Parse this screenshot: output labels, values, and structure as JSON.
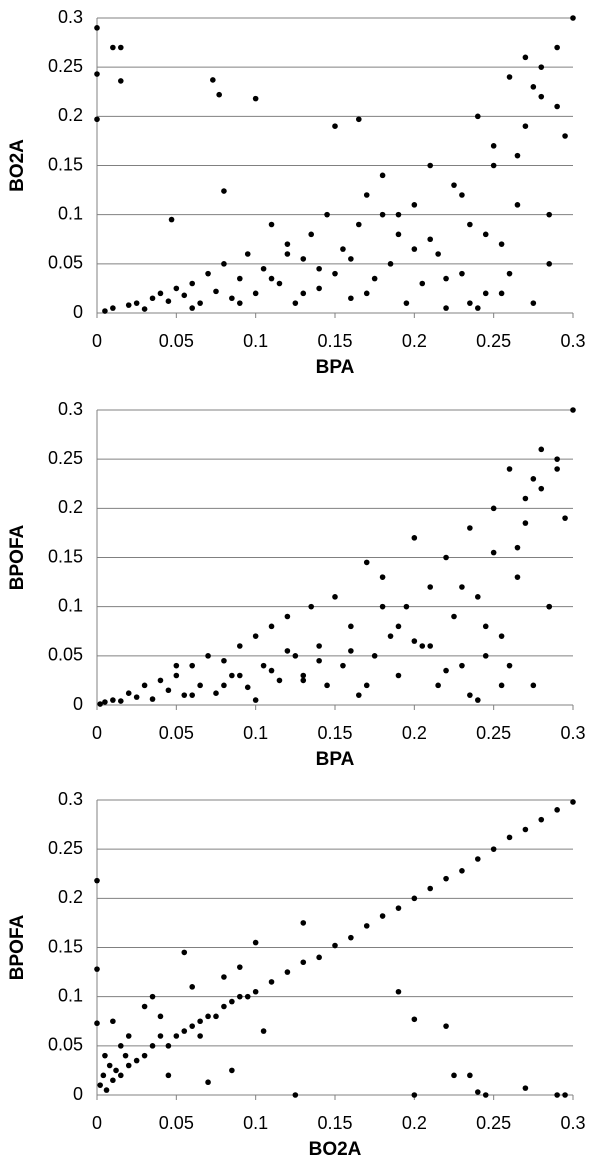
{
  "chart_data": [
    {
      "type": "scatter",
      "x_label": "BPA",
      "y_label": "BO2A",
      "color": "#000000",
      "xlim": [
        0,
        0.3
      ],
      "ylim": [
        0,
        0.3
      ],
      "xticks": [
        0,
        0.05,
        0.1,
        0.15,
        0.2,
        0.25,
        0.3
      ],
      "yticks": [
        0,
        0.05,
        0.1,
        0.15,
        0.2,
        0.25,
        0.3
      ],
      "grid": true,
      "x": [
        0,
        0,
        0,
        0.01,
        0.015,
        0.015,
        0.073,
        0.077,
        0.1,
        0.047,
        0.08,
        0.15,
        0.165,
        0.005,
        0.01,
        0.02,
        0.025,
        0.03,
        0.035,
        0.04,
        0.045,
        0.05,
        0.055,
        0.06,
        0.065,
        0.07,
        0.075,
        0.08,
        0.085,
        0.09,
        0.095,
        0.1,
        0.105,
        0.11,
        0.115,
        0.12,
        0.125,
        0.13,
        0.135,
        0.14,
        0.145,
        0.15,
        0.155,
        0.16,
        0.165,
        0.17,
        0.175,
        0.18,
        0.185,
        0.19,
        0.195,
        0.2,
        0.205,
        0.21,
        0.215,
        0.22,
        0.225,
        0.23,
        0.235,
        0.24,
        0.245,
        0.25,
        0.255,
        0.26,
        0.265,
        0.27,
        0.275,
        0.28,
        0.285,
        0.29,
        0.295,
        0.3,
        0.06,
        0.09,
        0.12,
        0.14,
        0.17,
        0.19,
        0.21,
        0.23,
        0.25,
        0.26,
        0.27,
        0.28,
        0.29,
        0.24,
        0.22,
        0.2,
        0.18,
        0.16,
        0.13,
        0.11,
        0.255,
        0.265,
        0.275,
        0.285,
        0.245,
        0.235
      ],
      "values": [
        0.29,
        0.243,
        0.197,
        0.27,
        0.27,
        0.236,
        0.237,
        0.222,
        0.218,
        0.095,
        0.124,
        0.19,
        0.197,
        0.002,
        0.005,
        0.008,
        0.01,
        0.004,
        0.015,
        0.02,
        0.012,
        0.025,
        0.018,
        0.03,
        0.01,
        0.04,
        0.022,
        0.05,
        0.015,
        0.035,
        0.06,
        0.02,
        0.045,
        0.09,
        0.03,
        0.07,
        0.01,
        0.055,
        0.08,
        0.025,
        0.1,
        0.04,
        0.065,
        0.015,
        0.09,
        0.12,
        0.035,
        0.14,
        0.05,
        0.08,
        0.01,
        0.11,
        0.03,
        0.15,
        0.06,
        0.005,
        0.13,
        0.04,
        0.09,
        0.2,
        0.02,
        0.17,
        0.07,
        0.24,
        0.11,
        0.26,
        0.01,
        0.22,
        0.05,
        0.27,
        0.18,
        0.3,
        0.005,
        0.01,
        0.06,
        0.045,
        0.02,
        0.1,
        0.075,
        0.12,
        0.15,
        0.04,
        0.19,
        0.25,
        0.21,
        0.005,
        0.035,
        0.065,
        0.1,
        0.055,
        0.02,
        0.035,
        0.02,
        0.16,
        0.23,
        0.1,
        0.08,
        0.01
      ]
    },
    {
      "type": "scatter",
      "x_label": "BPA",
      "y_label": "BPOFA",
      "color": "#000000",
      "xlim": [
        0,
        0.3
      ],
      "ylim": [
        0,
        0.3
      ],
      "xticks": [
        0,
        0.05,
        0.1,
        0.15,
        0.2,
        0.25,
        0.3
      ],
      "yticks": [
        0,
        0.05,
        0.1,
        0.15,
        0.2,
        0.25,
        0.3
      ],
      "grid": true,
      "x": [
        0.002,
        0.005,
        0.01,
        0.015,
        0.02,
        0.025,
        0.03,
        0.035,
        0.04,
        0.045,
        0.05,
        0.055,
        0.06,
        0.065,
        0.07,
        0.075,
        0.08,
        0.085,
        0.09,
        0.095,
        0.1,
        0.105,
        0.11,
        0.115,
        0.12,
        0.125,
        0.13,
        0.135,
        0.14,
        0.145,
        0.15,
        0.155,
        0.16,
        0.165,
        0.17,
        0.175,
        0.18,
        0.185,
        0.19,
        0.195,
        0.2,
        0.205,
        0.21,
        0.215,
        0.22,
        0.225,
        0.23,
        0.235,
        0.24,
        0.245,
        0.25,
        0.255,
        0.26,
        0.265,
        0.27,
        0.275,
        0.28,
        0.285,
        0.29,
        0.295,
        0.3,
        0.06,
        0.09,
        0.12,
        0.14,
        0.17,
        0.19,
        0.21,
        0.23,
        0.25,
        0.26,
        0.27,
        0.28,
        0.29,
        0.24,
        0.22,
        0.2,
        0.18,
        0.16,
        0.13,
        0.11,
        0.255,
        0.265,
        0.275,
        0.285,
        0.245,
        0.235,
        0.08,
        0.1,
        0.05
      ],
      "values": [
        0.001,
        0.003,
        0.005,
        0.004,
        0.012,
        0.008,
        0.02,
        0.006,
        0.025,
        0.015,
        0.03,
        0.01,
        0.04,
        0.02,
        0.05,
        0.012,
        0.045,
        0.03,
        0.06,
        0.018,
        0.07,
        0.04,
        0.08,
        0.025,
        0.09,
        0.05,
        0.03,
        0.1,
        0.06,
        0.02,
        0.11,
        0.04,
        0.08,
        0.01,
        0.145,
        0.05,
        0.13,
        0.07,
        0.03,
        0.1,
        0.17,
        0.06,
        0.12,
        0.02,
        0.15,
        0.09,
        0.04,
        0.18,
        0.11,
        0.05,
        0.2,
        0.07,
        0.24,
        0.13,
        0.21,
        0.02,
        0.26,
        0.1,
        0.25,
        0.19,
        0.3,
        0.01,
        0.03,
        0.055,
        0.045,
        0.02,
        0.08,
        0.06,
        0.12,
        0.155,
        0.04,
        0.185,
        0.22,
        0.24,
        0.005,
        0.035,
        0.065,
        0.1,
        0.055,
        0.025,
        0.035,
        0.02,
        0.16,
        0.23,
        0.1,
        0.08,
        0.01,
        0.02,
        0.005,
        0.04
      ]
    },
    {
      "type": "scatter",
      "x_label": "BO2A",
      "y_label": "BPOFA",
      "color": "#000000",
      "xlim": [
        0,
        0.3
      ],
      "ylim": [
        0,
        0.3
      ],
      "xticks": [
        0,
        0.05,
        0.1,
        0.15,
        0.2,
        0.25,
        0.3
      ],
      "yticks": [
        0,
        0.05,
        0.1,
        0.15,
        0.2,
        0.25,
        0.3
      ],
      "grid": true,
      "x": [
        0,
        0,
        0,
        0.002,
        0.004,
        0.006,
        0.008,
        0.01,
        0.012,
        0.015,
        0.018,
        0.02,
        0.025,
        0.03,
        0.035,
        0.04,
        0.045,
        0.05,
        0.055,
        0.06,
        0.065,
        0.07,
        0.075,
        0.08,
        0.085,
        0.09,
        0.095,
        0.1,
        0.11,
        0.12,
        0.13,
        0.14,
        0.15,
        0.16,
        0.17,
        0.18,
        0.19,
        0.2,
        0.21,
        0.22,
        0.23,
        0.24,
        0.25,
        0.26,
        0.27,
        0.28,
        0.29,
        0.3,
        0.19,
        0.2,
        0.22,
        0.225,
        0.235,
        0.24,
        0.27,
        0.29,
        0.295,
        0.125,
        0.2,
        0.245,
        0.07,
        0.085,
        0.04,
        0.055,
        0.06,
        0.08,
        0.09,
        0.1,
        0.105,
        0.13,
        0.02,
        0.03,
        0.045,
        0.065,
        0.01,
        0.015,
        0.005,
        0.035
      ],
      "values": [
        0.218,
        0.128,
        0.073,
        0.01,
        0.02,
        0.005,
        0.03,
        0.015,
        0.025,
        0.02,
        0.04,
        0.03,
        0.035,
        0.04,
        0.05,
        0.06,
        0.05,
        0.06,
        0.065,
        0.07,
        0.075,
        0.08,
        0.08,
        0.09,
        0.095,
        0.1,
        0.1,
        0.105,
        0.115,
        0.125,
        0.135,
        0.14,
        0.152,
        0.16,
        0.172,
        0.182,
        0.19,
        0.2,
        0.21,
        0.22,
        0.228,
        0.24,
        0.25,
        0.262,
        0.27,
        0.28,
        0.29,
        0.298,
        0.105,
        0.077,
        0.07,
        0.02,
        0.02,
        0.003,
        0.007,
        0,
        0,
        0,
        0,
        0,
        0.013,
        0.025,
        0.08,
        0.145,
        0.11,
        0.12,
        0.13,
        0.155,
        0.065,
        0.175,
        0.06,
        0.09,
        0.02,
        0.06,
        0.075,
        0.05,
        0.04,
        0.1
      ]
    }
  ]
}
